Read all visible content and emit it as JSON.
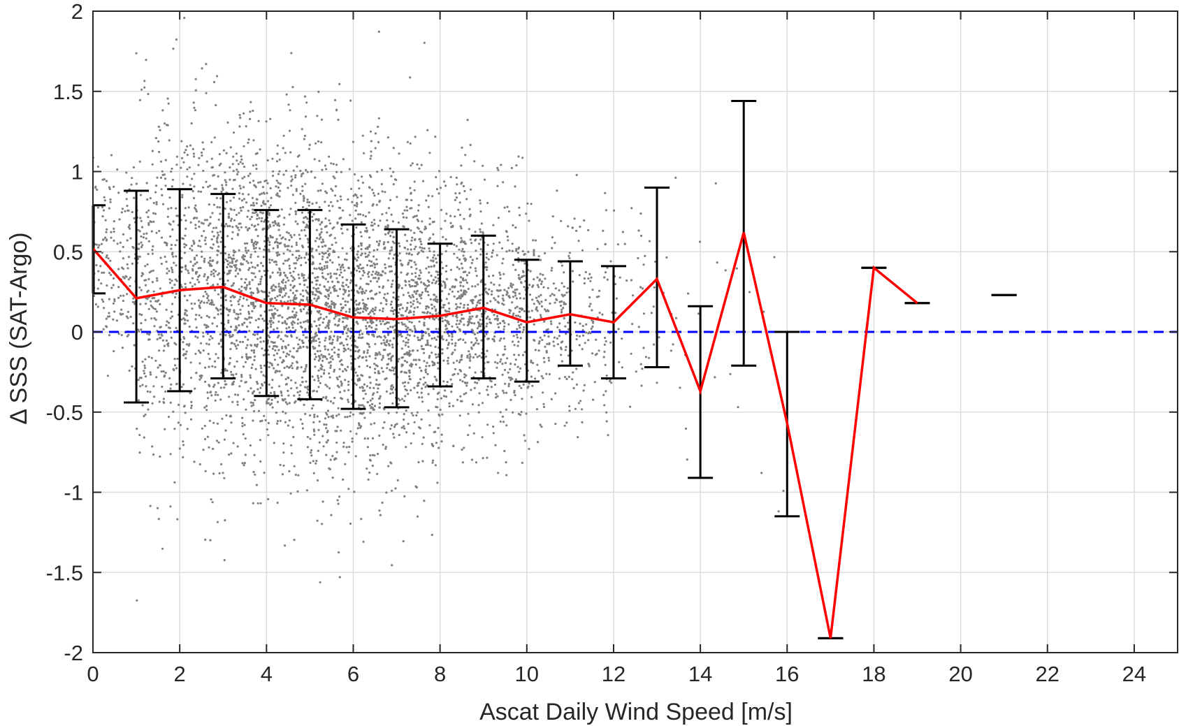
{
  "chart_data": {
    "type": "scatter",
    "title": "",
    "xlabel": "Ascat Daily Wind Speed [m/s]",
    "ylabel": "Δ SSS (SAT-Argo)",
    "xlim": [
      0,
      25
    ],
    "ylim": [
      -2,
      2
    ],
    "xticks": [
      0,
      2,
      4,
      6,
      8,
      10,
      12,
      14,
      16,
      18,
      20,
      22,
      24
    ],
    "yticks": [
      -2,
      -1.5,
      -1,
      -0.5,
      0,
      0.5,
      1,
      1.5,
      2
    ],
    "ytick_labels": [
      "-2",
      "-1.5",
      "-1",
      "-0.5",
      "0",
      "0.5",
      "1",
      "1.5",
      "2"
    ],
    "grid": true,
    "colors": {
      "scatter": "#808080",
      "mean_line": "#ff0000",
      "error_bars": "#000000",
      "zero_line": "#0000ff",
      "grid": "#dcdcdc",
      "axis": "#262626"
    },
    "scatter_description_note_free": true,
    "scatter_bins": [
      {
        "x": 0.5,
        "mean": 0.45,
        "sd": 0.3,
        "n": 180
      },
      {
        "x": 1.5,
        "mean": 0.24,
        "sd": 0.55,
        "n": 320
      },
      {
        "x": 2.5,
        "mean": 0.27,
        "sd": 0.55,
        "n": 420
      },
      {
        "x": 3.5,
        "mean": 0.24,
        "sd": 0.5,
        "n": 560
      },
      {
        "x": 4.5,
        "mean": 0.17,
        "sd": 0.5,
        "n": 640
      },
      {
        "x": 5.5,
        "mean": 0.13,
        "sd": 0.5,
        "n": 620
      },
      {
        "x": 6.5,
        "mean": 0.09,
        "sd": 0.5,
        "n": 600
      },
      {
        "x": 7.5,
        "mean": 0.1,
        "sd": 0.45,
        "n": 520
      },
      {
        "x": 8.5,
        "mean": 0.13,
        "sd": 0.4,
        "n": 420
      },
      {
        "x": 9.5,
        "mean": 0.1,
        "sd": 0.36,
        "n": 320
      },
      {
        "x": 10.5,
        "mean": 0.09,
        "sd": 0.32,
        "n": 200
      },
      {
        "x": 11.5,
        "mean": 0.08,
        "sd": 0.32,
        "n": 110
      },
      {
        "x": 12.5,
        "mean": 0.15,
        "sd": 0.4,
        "n": 45
      },
      {
        "x": 13.5,
        "mean": 0.0,
        "sd": 0.5,
        "n": 15
      },
      {
        "x": 14.5,
        "mean": 0.1,
        "sd": 0.55,
        "n": 8
      },
      {
        "x": 15.5,
        "mean": -0.6,
        "sd": 0.6,
        "n": 6
      }
    ],
    "mean_line": {
      "segments": [
        {
          "x": [
            0,
            1,
            2,
            3,
            4,
            5,
            6,
            7,
            8,
            9,
            10,
            11,
            12,
            13,
            14,
            15,
            16,
            17,
            18,
            19
          ],
          "y": [
            0.52,
            0.21,
            0.26,
            0.28,
            0.18,
            0.17,
            0.09,
            0.08,
            0.1,
            0.15,
            0.06,
            0.11,
            0.06,
            0.33,
            -0.37,
            0.62,
            -0.57,
            -1.91,
            0.4,
            0.18
          ]
        },
        {
          "x": [
            21
          ],
          "y": [
            0.23
          ]
        }
      ]
    },
    "error_bars": [
      {
        "x": 0,
        "low": 0.24,
        "high": 0.79
      },
      {
        "x": 1,
        "low": -0.44,
        "high": 0.88
      },
      {
        "x": 2,
        "low": -0.37,
        "high": 0.89
      },
      {
        "x": 3,
        "low": -0.29,
        "high": 0.86
      },
      {
        "x": 4,
        "low": -0.4,
        "high": 0.76
      },
      {
        "x": 5,
        "low": -0.42,
        "high": 0.76
      },
      {
        "x": 6,
        "low": -0.48,
        "high": 0.67
      },
      {
        "x": 7,
        "low": -0.47,
        "high": 0.64
      },
      {
        "x": 8,
        "low": -0.34,
        "high": 0.55
      },
      {
        "x": 9,
        "low": -0.29,
        "high": 0.6
      },
      {
        "x": 10,
        "low": -0.31,
        "high": 0.45
      },
      {
        "x": 11,
        "low": -0.21,
        "high": 0.44
      },
      {
        "x": 12,
        "low": -0.29,
        "high": 0.41
      },
      {
        "x": 13,
        "low": -0.22,
        "high": 0.9
      },
      {
        "x": 14,
        "low": -0.91,
        "high": 0.16
      },
      {
        "x": 15,
        "low": -0.21,
        "high": 1.44
      },
      {
        "x": 16,
        "low": -1.15,
        "high": 0.0
      },
      {
        "x": 17,
        "low": -1.91,
        "high": -1.91
      },
      {
        "x": 18,
        "low": 0.4,
        "high": 0.4
      },
      {
        "x": 19,
        "low": 0.18,
        "high": 0.18
      },
      {
        "x": 21,
        "low": 0.23,
        "high": 0.23
      }
    ],
    "reference_line": {
      "y": 0,
      "style": "dashed"
    }
  }
}
